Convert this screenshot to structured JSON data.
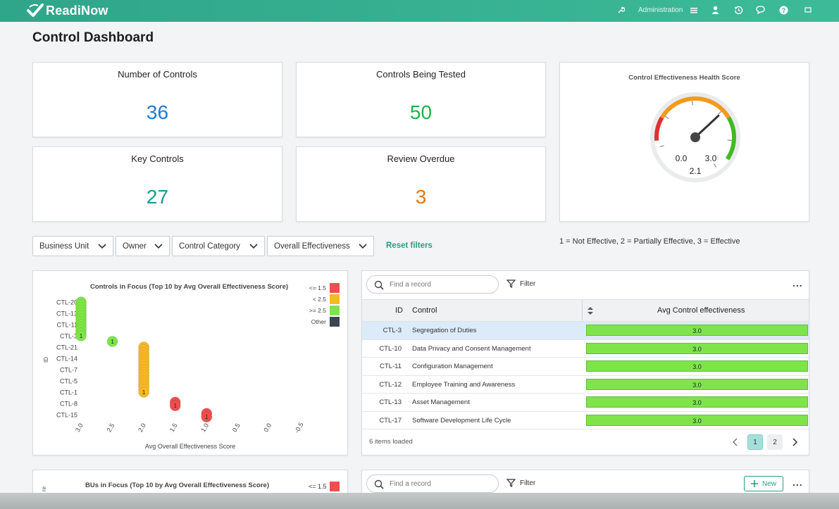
{
  "header": {
    "brand": "ReadiNow",
    "admin_label": "Administration"
  },
  "page": {
    "title": "Control Dashboard"
  },
  "kpis": [
    {
      "label": "Number of Controls",
      "value": "36",
      "color": "#1e7bd6"
    },
    {
      "label": "Controls Being Tested",
      "value": "50",
      "color": "#1fb24a"
    },
    {
      "label": "Key Controls",
      "value": "27",
      "color": "#169c8f"
    },
    {
      "label": "Review Overdue",
      "value": "3",
      "color": "#e07a12"
    }
  ],
  "gauge": {
    "title": "Control Effectiveness Health Score",
    "min_label": "0.0",
    "max_label": "3.0",
    "value_label": "2.1",
    "value": 2.1,
    "min": 0,
    "max": 3
  },
  "filters": {
    "business_unit": "Business Unit",
    "owner": "Owner",
    "control_category": "Control Category",
    "overall_effectiveness": "Overall Effectiveness",
    "reset": "Reset filters"
  },
  "scale_legend": "1 = Not Effective, 2 = Partially Effective, 3 = Effective",
  "chart_data": [
    {
      "type": "scatter",
      "title": "Controls in Focus (Top 10 by Avg Overall Effectiveness Score)",
      "xlabel": "Avg Overall Effectiveness Score",
      "ylabel": "ID",
      "x_ticks": [
        "3.0",
        "2.5",
        "2.0",
        "1.5",
        "1.0",
        "0.5",
        "0.0",
        "-0.5"
      ],
      "xlim": [
        3.0,
        -0.5
      ],
      "categories": [
        "CTL-20",
        "CTL-13",
        "CTL-11",
        "CTL-3",
        "CTL-21",
        "CTL-14",
        "CTL-7",
        "CTL-5",
        "CTL-1",
        "CTL-8",
        "CTL-15"
      ],
      "legend": [
        {
          "label": "<= 1.5",
          "color": "#f04e4e"
        },
        {
          "label": "< 2.5",
          "color": "#f7b924"
        },
        {
          "label": ">= 2.5",
          "color": "#7ee44a"
        },
        {
          "label": "Other",
          "color": "#3b4650"
        }
      ],
      "points": [
        {
          "x": 3.0,
          "y": 0,
          "label": "1",
          "band": 2
        },
        {
          "x": 3.0,
          "y": 0.25,
          "label": "1",
          "band": 2
        },
        {
          "x": 3.0,
          "y": 0.5,
          "label": "1",
          "band": 2
        },
        {
          "x": 3.0,
          "y": 0.75,
          "label": "1",
          "band": 2
        },
        {
          "x": 3.0,
          "y": 1,
          "label": "1",
          "band": 2
        },
        {
          "x": 3.0,
          "y": 1.25,
          "label": "1",
          "band": 2
        },
        {
          "x": 3.0,
          "y": 1.5,
          "label": "1",
          "band": 2
        },
        {
          "x": 3.0,
          "y": 1.75,
          "label": "1",
          "band": 2
        },
        {
          "x": 3.0,
          "y": 2,
          "label": "1",
          "band": 2
        },
        {
          "x": 3.0,
          "y": 2.25,
          "label": "1",
          "band": 2
        },
        {
          "x": 3.0,
          "y": 2.5,
          "label": "1",
          "band": 2
        },
        {
          "x": 3.0,
          "y": 2.75,
          "label": "1",
          "band": 2
        },
        {
          "x": 3.0,
          "y": 3,
          "label": "1",
          "band": 2
        },
        {
          "x": 2.5,
          "y": 3.5,
          "label": "1",
          "band": 2
        },
        {
          "x": 2.0,
          "y": 4,
          "label": "1",
          "band": 1
        },
        {
          "x": 2.0,
          "y": 4.25,
          "label": "1",
          "band": 1
        },
        {
          "x": 2.0,
          "y": 4.5,
          "label": "1",
          "band": 1
        },
        {
          "x": 2.0,
          "y": 4.75,
          "label": "1",
          "band": 1
        },
        {
          "x": 2.0,
          "y": 5,
          "label": "1",
          "band": 1
        },
        {
          "x": 2.0,
          "y": 5.25,
          "label": "1",
          "band": 1
        },
        {
          "x": 2.0,
          "y": 5.5,
          "label": "1",
          "band": 1
        },
        {
          "x": 2.0,
          "y": 5.75,
          "label": "1",
          "band": 1
        },
        {
          "x": 2.0,
          "y": 6,
          "label": "1",
          "band": 1
        },
        {
          "x": 2.0,
          "y": 6.25,
          "label": "1",
          "band": 1
        },
        {
          "x": 2.0,
          "y": 6.5,
          "label": "1",
          "band": 1
        },
        {
          "x": 2.0,
          "y": 6.75,
          "label": "1",
          "band": 1
        },
        {
          "x": 2.0,
          "y": 7,
          "label": "1",
          "band": 1
        },
        {
          "x": 2.0,
          "y": 7.25,
          "label": "1",
          "band": 1
        },
        {
          "x": 2.0,
          "y": 7.5,
          "label": "1",
          "band": 1
        },
        {
          "x": 2.0,
          "y": 7.75,
          "label": "1",
          "band": 1
        },
        {
          "x": 2.0,
          "y": 8,
          "label": "1",
          "band": 1
        },
        {
          "x": 1.5,
          "y": 8.9,
          "label": "1",
          "band": 0
        },
        {
          "x": 1.5,
          "y": 9.2,
          "label": "1",
          "band": 0
        },
        {
          "x": 1.0,
          "y": 9.9,
          "label": "1",
          "band": 0
        },
        {
          "x": 1.0,
          "y": 10.2,
          "label": "1",
          "band": 0
        }
      ]
    },
    {
      "type": "scatter",
      "title": "BUs in Focus (Top 10 by Avg Overall Effectiveness Score)",
      "legend": [
        {
          "label": "<= 1.5",
          "color": "#f04e4e"
        }
      ]
    }
  ],
  "grid": {
    "search_placeholder": "Find a record",
    "filter_label": "Filter",
    "more_label": "...",
    "col_id": "ID",
    "col_control": "Control",
    "col_avg": "Avg Control effectiveness",
    "rows": [
      {
        "id": "CTL-3",
        "control": "Segregation of Duties",
        "avg": "3.0"
      },
      {
        "id": "CTL-10",
        "control": "Data Privacy and Consent Management",
        "avg": "3.0"
      },
      {
        "id": "CTL-11",
        "control": "Configuration Management",
        "avg": "3.0"
      },
      {
        "id": "CTL-12",
        "control": "Employee Training and Awareness",
        "avg": "3.0"
      },
      {
        "id": "CTL-13",
        "control": "Asset Management",
        "avg": "3.0"
      },
      {
        "id": "CTL-17",
        "control": "Software Development Life Cycle",
        "avg": "3.0"
      }
    ],
    "items_loaded": "6 items loaded",
    "page1": "1",
    "page2": "2"
  },
  "grid2": {
    "search_placeholder": "Find a record",
    "filter_label": "Filter",
    "new_label": "New",
    "more_label": "..."
  }
}
